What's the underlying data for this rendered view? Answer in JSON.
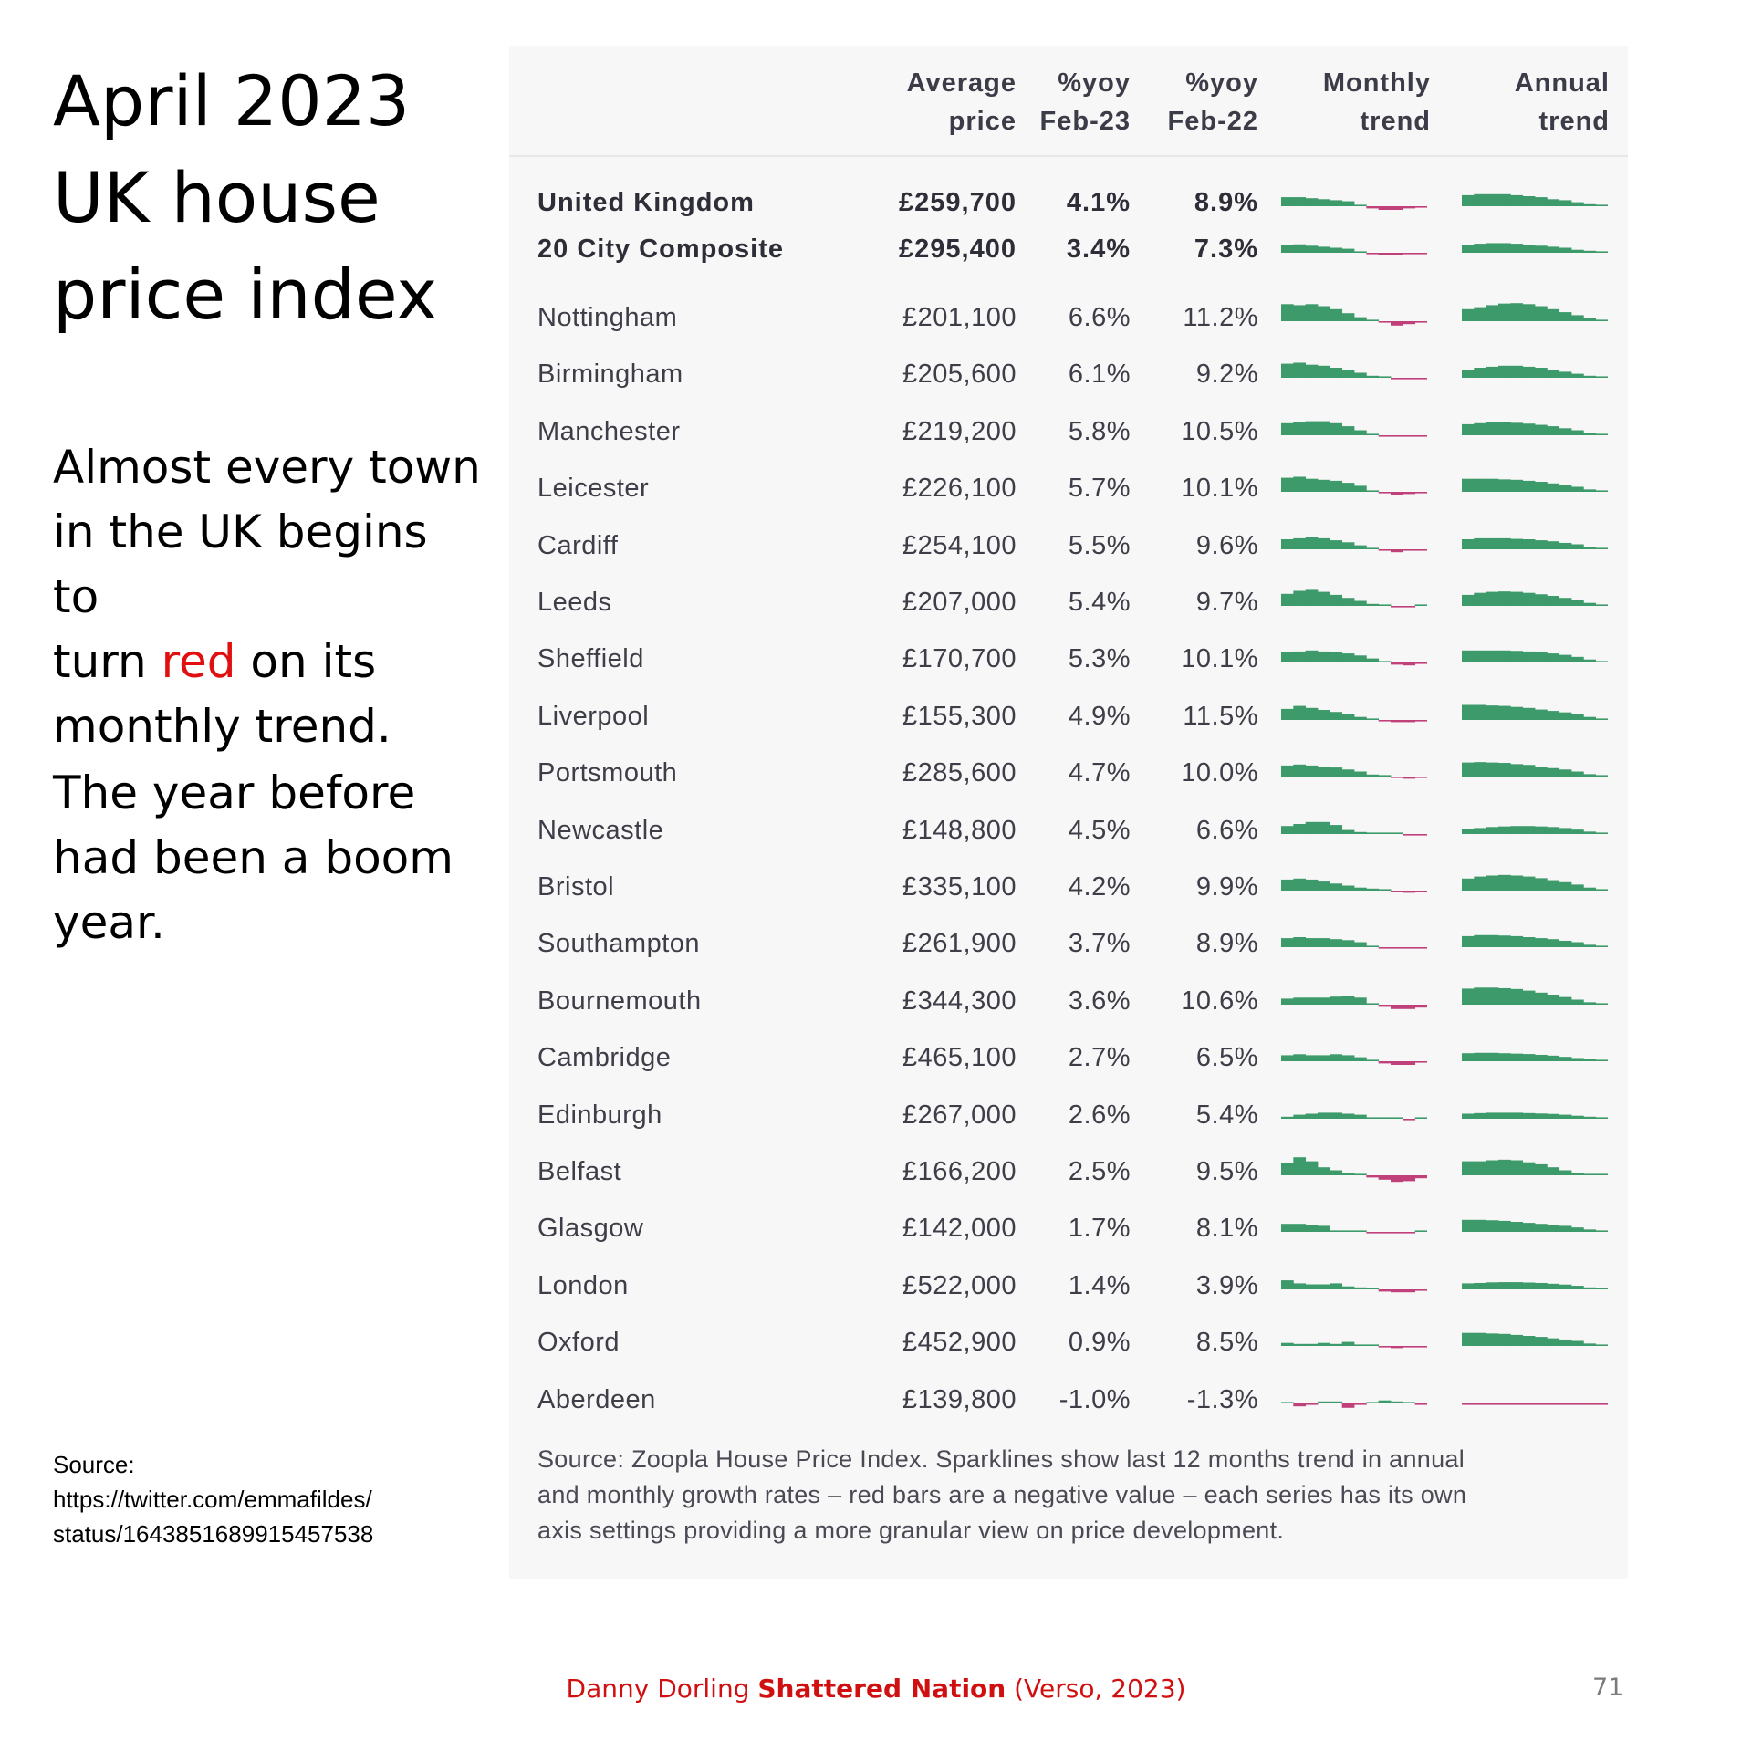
{
  "slide": {
    "title_lines": [
      "April 2023",
      "UK house",
      "price index"
    ],
    "body1_lines": [
      "Almost every town",
      "in the UK begins to"
    ],
    "body1_turn": "turn ",
    "body1_red": "red",
    "body1_rest": " on its",
    "body1_last": "monthly trend.",
    "body2_lines": [
      "The year before",
      "had been a boom",
      "year."
    ],
    "source_label": "Source:",
    "source_lines": [
      "https://twitter.com/emmafildes/",
      "status/1643851689915457538"
    ],
    "footer_author": "Danny Dorling ",
    "footer_book": "Shattered Nation",
    "footer_rest": " (Verso, 2023)",
    "page_number": "71",
    "accent_red": "#e01010"
  },
  "table": {
    "headers": {
      "price": [
        "Average",
        "price"
      ],
      "yoy23": [
        "%yoy",
        "Feb-23"
      ],
      "yoy22": [
        "%yoy",
        "Feb-22"
      ],
      "monthly": [
        "Monthly",
        "trend"
      ],
      "annual": [
        "Annual",
        "trend"
      ]
    },
    "colors": {
      "positive": "#3d9a6a",
      "negative": "#c0407a"
    },
    "source_lines": [
      "Source: Zoopla House Price Index. Sparklines show last 12 months trend in annual",
      "and monthly growth rates – red bars are a negative value – each series has its own",
      "axis settings providing a more granular view on price development."
    ],
    "rows": [
      {
        "name": "United Kingdom",
        "price": "£259,700",
        "yoy23": "4.1%",
        "yoy22": "8.9%",
        "bold": true,
        "monthly": [
          0.45,
          0.45,
          0.4,
          0.35,
          0.3,
          0.25,
          0.05,
          -0.15,
          -0.25,
          -0.25,
          -0.15,
          -0.05
        ],
        "annual": [
          0.55,
          0.6,
          0.6,
          0.6,
          0.55,
          0.5,
          0.45,
          0.35,
          0.3,
          0.2,
          0.1,
          0.05
        ]
      },
      {
        "name": "20 City Composite",
        "price": "£295,400",
        "yoy23": "3.4%",
        "yoy22": "7.3%",
        "bold": true,
        "monthly": [
          0.4,
          0.42,
          0.35,
          0.3,
          0.25,
          0.2,
          0.05,
          -0.1,
          -0.15,
          -0.15,
          -0.1,
          -0.05
        ],
        "annual": [
          0.4,
          0.45,
          0.48,
          0.48,
          0.45,
          0.4,
          0.35,
          0.3,
          0.25,
          0.15,
          0.1,
          0.05
        ]
      },
      {
        "name": "Nottingham",
        "price": "£201,100",
        "yoy23": "6.6%",
        "yoy22": "11.2%",
        "monthly": [
          0.85,
          0.8,
          0.85,
          0.75,
          0.6,
          0.4,
          0.2,
          0.05,
          -0.1,
          -0.3,
          -0.2,
          -0.05
        ],
        "annual": [
          0.6,
          0.7,
          0.8,
          0.88,
          0.9,
          0.85,
          0.75,
          0.6,
          0.45,
          0.3,
          0.15,
          0.05
        ]
      },
      {
        "name": "Birmingham",
        "price": "£205,600",
        "yoy23": "6.1%",
        "yoy22": "9.2%",
        "monthly": [
          0.7,
          0.75,
          0.65,
          0.6,
          0.5,
          0.4,
          0.25,
          0.1,
          0.05,
          -0.1,
          -0.05,
          -0.05
        ],
        "annual": [
          0.4,
          0.5,
          0.55,
          0.6,
          0.6,
          0.55,
          0.5,
          0.4,
          0.3,
          0.2,
          0.1,
          0.05
        ]
      },
      {
        "name": "Manchester",
        "price": "£219,200",
        "yoy23": "5.8%",
        "yoy22": "10.5%",
        "monthly": [
          0.6,
          0.65,
          0.7,
          0.7,
          0.6,
          0.45,
          0.25,
          0.05,
          -0.05,
          -0.1,
          -0.05,
          -0.05
        ],
        "annual": [
          0.55,
          0.6,
          0.65,
          0.65,
          0.62,
          0.58,
          0.52,
          0.45,
          0.35,
          0.25,
          0.12,
          0.05
        ]
      },
      {
        "name": "Leicester",
        "price": "£226,100",
        "yoy23": "5.7%",
        "yoy22": "10.1%",
        "monthly": [
          0.7,
          0.75,
          0.65,
          0.6,
          0.55,
          0.45,
          0.3,
          0.05,
          -0.1,
          -0.2,
          -0.15,
          -0.05
        ],
        "annual": [
          0.65,
          0.65,
          0.65,
          0.62,
          0.6,
          0.55,
          0.5,
          0.42,
          0.35,
          0.25,
          0.12,
          0.05
        ]
      },
      {
        "name": "Cardiff",
        "price": "£254,100",
        "yoy23": "5.5%",
        "yoy22": "9.6%",
        "monthly": [
          0.5,
          0.55,
          0.6,
          0.55,
          0.45,
          0.35,
          0.2,
          0.05,
          -0.1,
          -0.2,
          -0.1,
          -0.05
        ],
        "annual": [
          0.5,
          0.55,
          0.55,
          0.55,
          0.52,
          0.5,
          0.45,
          0.4,
          0.32,
          0.25,
          0.12,
          0.05
        ]
      },
      {
        "name": "Leeds",
        "price": "£207,000",
        "yoy23": "5.4%",
        "yoy22": "9.7%",
        "monthly": [
          0.6,
          0.75,
          0.8,
          0.7,
          0.55,
          0.4,
          0.25,
          0.1,
          0.0,
          -0.05,
          -0.05,
          0.0
        ],
        "annual": [
          0.55,
          0.65,
          0.7,
          0.72,
          0.7,
          0.65,
          0.58,
          0.5,
          0.4,
          0.28,
          0.15,
          0.05
        ]
      },
      {
        "name": "Sheffield",
        "price": "£170,700",
        "yoy23": "5.3%",
        "yoy22": "10.1%",
        "monthly": [
          0.5,
          0.55,
          0.6,
          0.55,
          0.5,
          0.45,
          0.35,
          0.2,
          0.05,
          -0.15,
          -0.2,
          -0.1
        ],
        "annual": [
          0.6,
          0.6,
          0.6,
          0.6,
          0.58,
          0.55,
          0.5,
          0.45,
          0.38,
          0.28,
          0.15,
          0.05
        ]
      },
      {
        "name": "Liverpool",
        "price": "£155,300",
        "yoy23": "4.9%",
        "yoy22": "11.5%",
        "monthly": [
          0.55,
          0.7,
          0.6,
          0.5,
          0.4,
          0.3,
          0.15,
          0.05,
          -0.1,
          -0.15,
          -0.15,
          -0.1
        ],
        "annual": [
          0.75,
          0.75,
          0.72,
          0.7,
          0.65,
          0.6,
          0.52,
          0.45,
          0.38,
          0.3,
          0.15,
          0.05
        ]
      },
      {
        "name": "Portsmouth",
        "price": "£285,600",
        "yoy23": "4.7%",
        "yoy22": "10.0%",
        "monthly": [
          0.55,
          0.6,
          0.55,
          0.5,
          0.45,
          0.35,
          0.25,
          0.1,
          0.0,
          -0.1,
          -0.15,
          -0.1
        ],
        "annual": [
          0.7,
          0.72,
          0.7,
          0.68,
          0.62,
          0.58,
          0.5,
          0.42,
          0.35,
          0.25,
          0.12,
          0.05
        ]
      },
      {
        "name": "Newcastle",
        "price": "£148,800",
        "yoy23": "4.5%",
        "yoy22": "6.6%",
        "monthly": [
          0.4,
          0.5,
          0.6,
          0.6,
          0.45,
          0.2,
          0.1,
          0.05,
          0.05,
          0.05,
          -0.1,
          -0.1
        ],
        "annual": [
          0.25,
          0.3,
          0.35,
          0.38,
          0.4,
          0.4,
          0.38,
          0.35,
          0.3,
          0.22,
          0.12,
          0.05
        ]
      },
      {
        "name": "Bristol",
        "price": "£335,100",
        "yoy23": "4.2%",
        "yoy22": "9.9%",
        "monthly": [
          0.55,
          0.6,
          0.55,
          0.45,
          0.35,
          0.25,
          0.15,
          0.1,
          0.05,
          -0.1,
          -0.15,
          -0.1
        ],
        "annual": [
          0.6,
          0.7,
          0.75,
          0.78,
          0.75,
          0.7,
          0.62,
          0.52,
          0.42,
          0.3,
          0.15,
          0.05
        ]
      },
      {
        "name": "Southampton",
        "price": "£261,900",
        "yoy23": "3.7%",
        "yoy22": "8.9%",
        "monthly": [
          0.45,
          0.5,
          0.45,
          0.45,
          0.4,
          0.35,
          0.25,
          0.05,
          -0.05,
          -0.1,
          -0.1,
          -0.05
        ],
        "annual": [
          0.55,
          0.6,
          0.6,
          0.58,
          0.55,
          0.5,
          0.45,
          0.4,
          0.32,
          0.25,
          0.12,
          0.05
        ]
      },
      {
        "name": "Bournemouth",
        "price": "£344,300",
        "yoy23": "3.6%",
        "yoy22": "10.6%",
        "monthly": [
          0.3,
          0.35,
          0.35,
          0.35,
          0.4,
          0.45,
          0.35,
          0.05,
          -0.15,
          -0.3,
          -0.3,
          -0.2
        ],
        "annual": [
          0.8,
          0.85,
          0.85,
          0.82,
          0.78,
          0.7,
          0.6,
          0.5,
          0.38,
          0.25,
          0.12,
          0.05
        ]
      },
      {
        "name": "Cambridge",
        "price": "£465,100",
        "yoy23": "2.7%",
        "yoy22": "6.5%",
        "monthly": [
          0.3,
          0.35,
          0.3,
          0.3,
          0.35,
          0.3,
          0.2,
          0.05,
          -0.15,
          -0.25,
          -0.25,
          -0.1
        ],
        "annual": [
          0.4,
          0.42,
          0.42,
          0.4,
          0.38,
          0.36,
          0.32,
          0.28,
          0.22,
          0.16,
          0.1,
          0.05
        ]
      },
      {
        "name": "Edinburgh",
        "price": "£267,000",
        "yoy23": "2.6%",
        "yoy22": "5.4%",
        "monthly": [
          0.1,
          0.2,
          0.25,
          0.3,
          0.3,
          0.25,
          0.2,
          0.0,
          0.0,
          0.0,
          -0.05,
          0.0
        ],
        "annual": [
          0.25,
          0.28,
          0.3,
          0.3,
          0.3,
          0.28,
          0.26,
          0.24,
          0.2,
          0.15,
          0.1,
          0.05
        ]
      },
      {
        "name": "Belfast",
        "price": "£166,200",
        "yoy23": "2.5%",
        "yoy22": "9.5%",
        "monthly": [
          0.6,
          0.9,
          0.7,
          0.4,
          0.25,
          0.1,
          0.05,
          -0.15,
          -0.3,
          -0.45,
          -0.4,
          -0.2
        ],
        "annual": [
          0.7,
          0.7,
          0.75,
          0.78,
          0.75,
          0.65,
          0.55,
          0.4,
          0.25,
          0.1,
          0.05,
          0.02
        ]
      },
      {
        "name": "Glasgow",
        "price": "£142,000",
        "yoy23": "1.7%",
        "yoy22": "8.1%",
        "monthly": [
          0.4,
          0.4,
          0.35,
          0.3,
          0.0,
          0.0,
          0.0,
          -0.05,
          -0.1,
          -0.1,
          -0.05,
          0.0
        ],
        "annual": [
          0.6,
          0.6,
          0.58,
          0.55,
          0.5,
          0.45,
          0.4,
          0.35,
          0.3,
          0.22,
          0.12,
          0.05
        ]
      },
      {
        "name": "London",
        "price": "£522,000",
        "yoy23": "1.4%",
        "yoy22": "3.9%",
        "monthly": [
          0.45,
          0.3,
          0.25,
          0.25,
          0.3,
          0.15,
          0.1,
          0.0,
          -0.15,
          -0.2,
          -0.2,
          -0.1
        ],
        "annual": [
          0.3,
          0.32,
          0.35,
          0.36,
          0.36,
          0.34,
          0.32,
          0.28,
          0.24,
          0.18,
          0.1,
          0.05
        ]
      },
      {
        "name": "Oxford",
        "price": "£452,900",
        "yoy23": "0.9%",
        "yoy22": "8.5%",
        "monthly": [
          0.15,
          0.1,
          0.1,
          0.15,
          0.1,
          0.2,
          0.05,
          0.0,
          -0.1,
          -0.15,
          -0.1,
          -0.05
        ],
        "annual": [
          0.65,
          0.65,
          0.62,
          0.6,
          0.55,
          0.5,
          0.45,
          0.38,
          0.32,
          0.25,
          0.12,
          0.05
        ]
      },
      {
        "name": "Aberdeen",
        "price": "£139,800",
        "yoy23": "-1.0%",
        "yoy22": "-1.3%",
        "monthly": [
          0.0,
          -0.2,
          -0.1,
          0.1,
          0.1,
          -0.3,
          -0.1,
          0.0,
          0.15,
          0.1,
          0.05,
          -0.05
        ],
        "annual": [
          -0.05,
          -0.05,
          -0.05,
          -0.04,
          -0.04,
          -0.03,
          -0.03,
          -0.03,
          -0.06,
          -0.03,
          -0.02,
          -0.02
        ]
      }
    ]
  }
}
